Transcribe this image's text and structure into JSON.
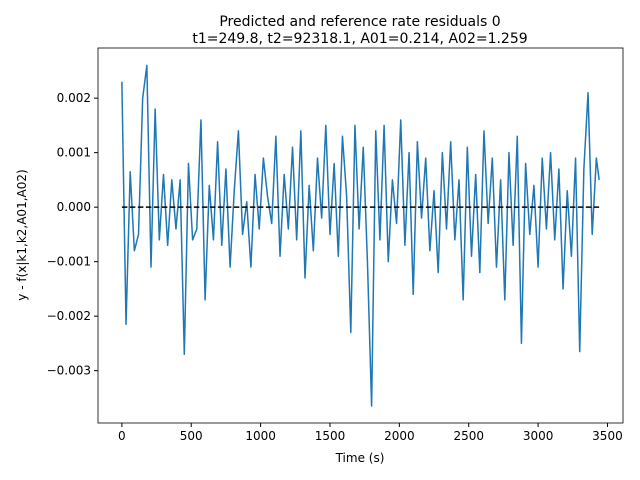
{
  "chart_data": {
    "type": "line",
    "title": "Predicted and reference rate residuals 0",
    "subtitle": "t1=249.8, t2=92318.1, A01=0.214, A02=1.259",
    "x_label": "Time (s)",
    "y_label": "y - f(x|k1,k2,A01,A02)",
    "xlim": [
      -172,
      3612
    ],
    "ylim": [
      -0.00396,
      0.00292
    ],
    "xticks": [
      0,
      500,
      1000,
      1500,
      2000,
      2500,
      3000,
      3500
    ],
    "yticks": [
      {
        "value": -0.003,
        "label": "−0.003"
      },
      {
        "value": -0.002,
        "label": "−0.002"
      },
      {
        "value": -0.001,
        "label": "−0.001"
      },
      {
        "value": 0,
        "label": "0.000"
      },
      0.001,
      0.002
    ],
    "reference_line": {
      "value": 0,
      "color": "#000000",
      "dashed": true
    },
    "series": [
      {
        "color": "#1f77b4",
        "x": [
          0,
          30,
          60,
          90,
          120,
          150,
          180,
          210,
          240,
          270,
          300,
          330,
          360,
          390,
          420,
          450,
          480,
          510,
          540,
          570,
          600,
          630,
          660,
          690,
          720,
          750,
          780,
          810,
          840,
          870,
          900,
          930,
          960,
          990,
          1020,
          1050,
          1080,
          1110,
          1140,
          1170,
          1200,
          1230,
          1260,
          1290,
          1320,
          1350,
          1380,
          1410,
          1440,
          1470,
          1500,
          1530,
          1560,
          1590,
          1620,
          1650,
          1680,
          1710,
          1740,
          1770,
          1800,
          1830,
          1860,
          1890,
          1920,
          1950,
          1980,
          2010,
          2040,
          2070,
          2100,
          2130,
          2160,
          2190,
          2220,
          2250,
          2280,
          2310,
          2340,
          2370,
          2400,
          2430,
          2460,
          2490,
          2520,
          2550,
          2580,
          2610,
          2640,
          2670,
          2700,
          2730,
          2760,
          2790,
          2820,
          2850,
          2880,
          2910,
          2940,
          2970,
          3000,
          3030,
          3060,
          3090,
          3120,
          3150,
          3180,
          3210,
          3240,
          3270,
          3300,
          3330,
          3360,
          3390,
          3420,
          3440
        ],
        "values": [
          0.0023,
          -0.00215,
          0.00065,
          -0.0008,
          -0.0005,
          0.002,
          0.0026,
          -0.0011,
          0.0018,
          -0.0006,
          0.0006,
          -0.0007,
          0.0005,
          -0.0004,
          0.0005,
          -0.0027,
          0.0008,
          -0.0006,
          -0.0004,
          0.0016,
          -0.0017,
          0.0004,
          -0.0006,
          0.0012,
          -0.0007,
          0.0007,
          -0.0011,
          0.0003,
          0.0014,
          -0.0005,
          0.0001,
          -0.0011,
          0.0006,
          -0.0004,
          0.0009,
          0.0002,
          -0.0003,
          0.0013,
          -0.0009,
          0.0006,
          -0.0004,
          0.0011,
          -0.0006,
          0.0014,
          -0.0013,
          0.0004,
          -0.0008,
          0.0009,
          -0.0002,
          0.0015,
          -0.0005,
          0.0008,
          -0.0009,
          0.0013,
          0.0002,
          -0.0023,
          0.0015,
          -0.0004,
          0.0011,
          -0.001,
          -0.00365,
          0.0014,
          -0.0006,
          0.0015,
          -0.001,
          0.0005,
          -0.0003,
          0.0016,
          -0.0007,
          0.001,
          -0.0016,
          0.0012,
          -0.0002,
          0.0009,
          -0.0008,
          0.0003,
          -0.0012,
          0.001,
          -0.0004,
          0.0012,
          -0.0006,
          0.0005,
          -0.0017,
          0.0011,
          -0.0009,
          0.0006,
          -0.0012,
          0.0014,
          -0.0003,
          0.0009,
          -0.0011,
          0.0005,
          -0.0017,
          0.001,
          -0.0007,
          0.0013,
          -0.0025,
          0.0008,
          -0.0005,
          0.0004,
          -0.0011,
          0.0009,
          -0.0004,
          0.001,
          -0.0006,
          0.0007,
          -0.0015,
          0.0003,
          -0.0009,
          0.0009,
          -0.00265,
          0.0007,
          0.0021,
          -0.0005,
          0.0009,
          0.0005
        ]
      }
    ]
  }
}
